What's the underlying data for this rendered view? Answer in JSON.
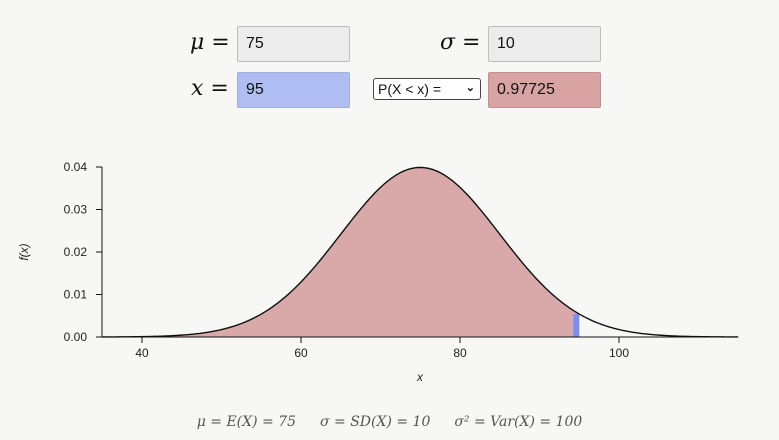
{
  "inputs": {
    "mu_symbol": "μ =",
    "mu_value": "75",
    "sigma_symbol": "σ =",
    "sigma_value": "10",
    "x_symbol": "x =",
    "x_value": "95",
    "prob_select": "P(X < x) =",
    "prob_value": "0.97725"
  },
  "colors": {
    "mu_field": "#ececec",
    "x_field": "#b0bdf2",
    "result_field": "#d9a3a3",
    "shaded_area": "#d9a9a9",
    "x_marker": "#7b8ff0"
  },
  "chart_data": {
    "type": "area",
    "distribution": "normal",
    "mean": 75,
    "sd": 10,
    "x_cutoff": 95,
    "shaded": "left of x",
    "xlim": [
      35,
      115
    ],
    "ylim": [
      0,
      0.04
    ],
    "x_ticks": [
      "40",
      "60",
      "80",
      "100"
    ],
    "y_ticks": [
      "0.00",
      "0.01",
      "0.02",
      "0.03",
      "0.04"
    ],
    "xlabel": "x",
    "ylabel": "f(x)"
  },
  "summary": {
    "mean": "μ = E(X) = 75",
    "sd": "σ = SD(X) = 10",
    "var": "σ² = Var(X) = 100"
  }
}
